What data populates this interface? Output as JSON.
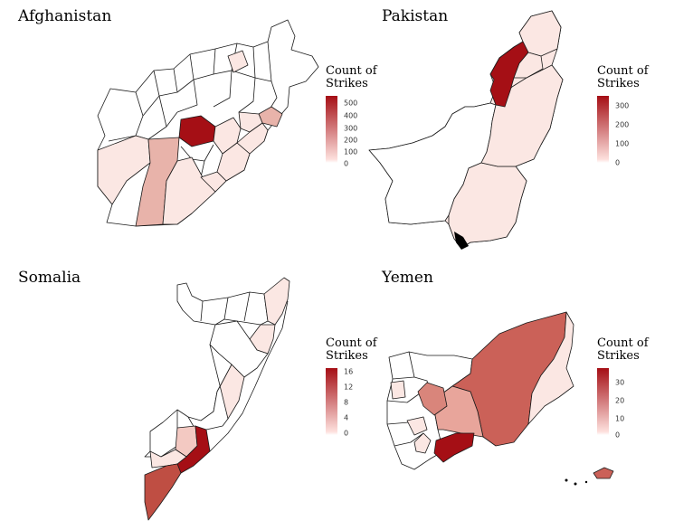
{
  "colors": {
    "high": "#a50f15",
    "mid": "#cb6158",
    "low": "#e8b3aa",
    "verylow": "#fbe7e3",
    "zero": "#ffffff",
    "border": "#1a1a1a"
  },
  "legend_title_line1": "Count of",
  "legend_title_line2": "Strikes",
  "panels": {
    "afghanistan": {
      "title": "Afghanistan",
      "ticks": [
        "500",
        "400",
        "300",
        "200",
        "100",
        "0"
      ]
    },
    "pakistan": {
      "title": "Pakistan",
      "ticks": [
        "300",
        "200",
        "100",
        "0"
      ]
    },
    "somalia": {
      "title": "Somalia",
      "ticks": [
        "16",
        "12",
        "8",
        "4",
        "0"
      ]
    },
    "yemen": {
      "title": "Yemen",
      "ticks": [
        "30",
        "20",
        "10",
        "0"
      ]
    }
  }
}
